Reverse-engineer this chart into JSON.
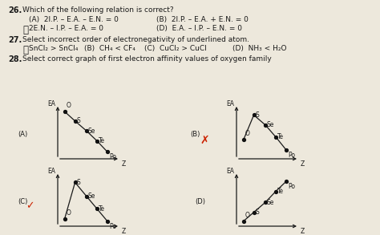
{
  "background_color": "#ede8dc",
  "text_color": "#1a1a1a",
  "line_color": "#1a1a1a",
  "dot_color": "#111111",
  "red_color": "#cc2200",
  "q26_num": "26.",
  "q26_title": "Which of the following relation is correct?",
  "q26_A": "(A)  2I.P. – E.A. – E.N. = 0",
  "q26_B": "(B)  2I.P. – E.A. + E.N. = 0",
  "q26_G": "2E.N. – I.P. – E.A. = 0",
  "q26_D": "(D)  E.A. – I.P. – E.N. = 0",
  "q27_num": "27.",
  "q27_title": "Select incorrect order of electronegativity of underlined atom.",
  "q27_A": "SnCl₂ > SnCl₄",
  "q27_B": "(B)  CH₄ < CF₄",
  "q27_C": "(C)  CuCl₂ > CuCl",
  "q27_D": "(D)  NH₃ < H₂O",
  "q28_num": "28.",
  "q28_title": "Select correct graph of first electron affinity values of oxygen family",
  "graphA_label": "(A)",
  "graphB_label": "(B)",
  "graphC_label": "(C)",
  "graphD_label": "(D)",
  "elements": [
    "O",
    "S",
    "Se",
    "Te",
    "Po"
  ],
  "graphA_nx": [
    0.12,
    0.3,
    0.5,
    0.68,
    0.86
  ],
  "graphA_ny": [
    0.95,
    0.76,
    0.56,
    0.36,
    0.14
  ],
  "graphB_nx": [
    0.12,
    0.3,
    0.5,
    0.68,
    0.86
  ],
  "graphB_ny": [
    0.38,
    0.88,
    0.68,
    0.44,
    0.18
  ],
  "graphC_nx": [
    0.12,
    0.3,
    0.5,
    0.68,
    0.86
  ],
  "graphC_ny": [
    0.15,
    0.88,
    0.6,
    0.35,
    0.1
  ],
  "graphD_nx": [
    0.12,
    0.3,
    0.5,
    0.68,
    0.86
  ],
  "graphD_ny": [
    0.1,
    0.28,
    0.48,
    0.7,
    0.9
  ]
}
